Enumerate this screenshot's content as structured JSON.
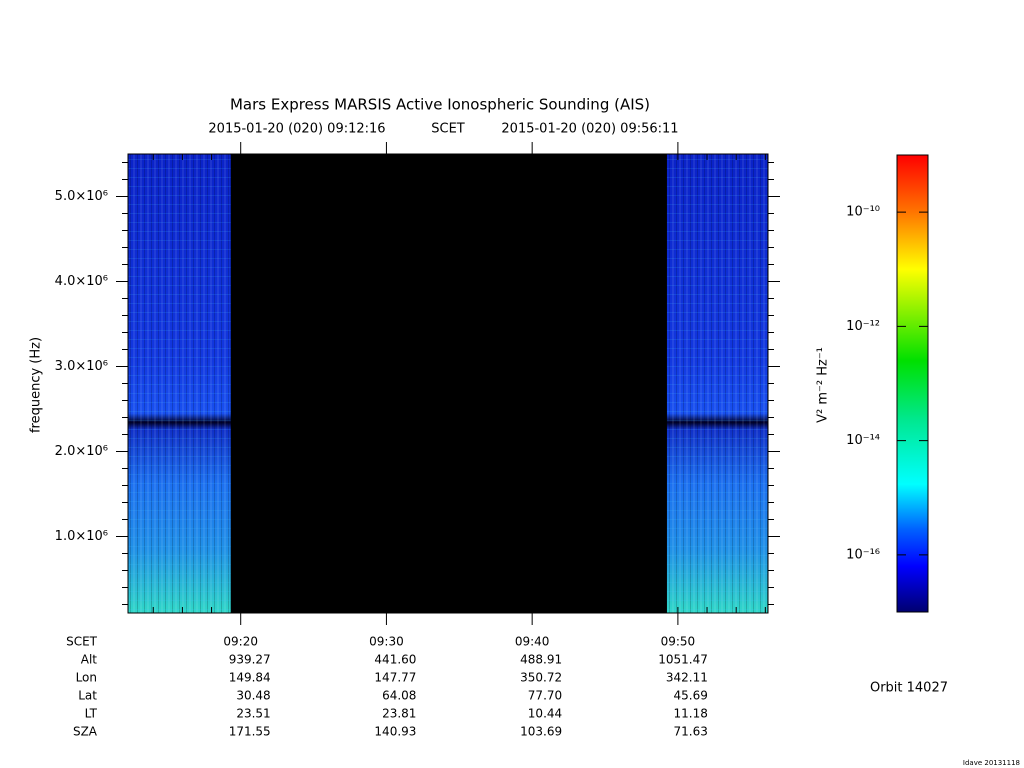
{
  "chart_data": {
    "type": "spectrogram",
    "title": "Mars Express MARSIS Active Ionospheric Sounding (AIS)",
    "subtitle": [
      "2015-01-20 (020) 09:12:16",
      "SCET",
      "2015-01-20 (020) 09:56:11"
    ],
    "y_label": "frequency (Hz)",
    "xlim": [
      "09:12:16",
      "09:56:11"
    ],
    "xticks": [
      "09:20",
      "09:30",
      "09:40",
      "09:50"
    ],
    "ylim": [
      100000,
      5500000
    ],
    "yticks": [
      {
        "value": 1000000,
        "label": "1.0×10⁶"
      },
      {
        "value": 2000000,
        "label": "2.0×10⁶"
      },
      {
        "value": 3000000,
        "label": "3.0×10⁶"
      },
      {
        "value": 4000000,
        "label": "4.0×10⁶"
      },
      {
        "value": 5000000,
        "label": "5.0×10⁶"
      }
    ],
    "sounding_intervals": [
      [
        "09:12:16",
        "09:19:19"
      ],
      [
        "09:49:15",
        "09:56:11"
      ]
    ],
    "colorbar": {
      "label": "V² m⁻² Hz⁻¹",
      "scale": "log",
      "lim": [
        1e-17,
        1e-09
      ],
      "ticks": [
        {
          "value": 1e-10,
          "label": "10⁻¹⁰"
        },
        {
          "value": 1e-12,
          "label": "10⁻¹²"
        },
        {
          "value": 1e-14,
          "label": "10⁻¹⁴"
        },
        {
          "value": 1e-16,
          "label": "10⁻¹⁶"
        }
      ]
    },
    "ephemeris": {
      "time_label": "SCET",
      "rows": [
        {
          "label": "Alt",
          "values": [
            "939.27",
            "441.60",
            "488.91",
            "1051.47"
          ]
        },
        {
          "label": "Lon",
          "values": [
            "149.84",
            "147.77",
            "350.72",
            "342.11"
          ]
        },
        {
          "label": "Lat",
          "values": [
            "30.48",
            "64.08",
            "77.70",
            "45.69"
          ]
        },
        {
          "label": "LT",
          "values": [
            "23.51",
            "23.81",
            "10.44",
            "11.18"
          ]
        },
        {
          "label": "SZA",
          "values": [
            "171.55",
            "140.93",
            "103.69",
            "71.63"
          ]
        }
      ]
    },
    "orbit": "Orbit 14027",
    "footer": "Idave 20131118"
  }
}
